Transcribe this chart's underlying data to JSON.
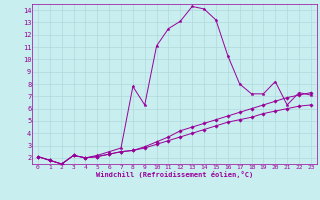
{
  "xlabel": "Windchill (Refroidissement éolien,°C)",
  "xlim": [
    -0.5,
    23.5
  ],
  "ylim": [
    1.5,
    14.5
  ],
  "xticks": [
    0,
    1,
    2,
    3,
    4,
    5,
    6,
    7,
    8,
    9,
    10,
    11,
    12,
    13,
    14,
    15,
    16,
    17,
    18,
    19,
    20,
    21,
    22,
    23
  ],
  "yticks": [
    2,
    3,
    4,
    5,
    6,
    7,
    8,
    9,
    10,
    11,
    12,
    13,
    14
  ],
  "bg_color": "#c8eef0",
  "line_color": "#990099",
  "grid_color": "#b0d8da",
  "line1_x": [
    0,
    1,
    2,
    3,
    4,
    5,
    6,
    7,
    8,
    9,
    10,
    11,
    12,
    13,
    14,
    15,
    16,
    17,
    18,
    19,
    20,
    21,
    22,
    23
  ],
  "line1_y": [
    2.1,
    1.8,
    1.5,
    2.2,
    2.0,
    2.1,
    2.3,
    2.5,
    2.6,
    2.8,
    3.1,
    3.4,
    3.7,
    4.0,
    4.3,
    4.6,
    4.9,
    5.1,
    5.3,
    5.6,
    5.8,
    6.0,
    6.2,
    6.3
  ],
  "line2_x": [
    0,
    1,
    2,
    3,
    4,
    5,
    6,
    7,
    8,
    9,
    10,
    11,
    12,
    13,
    14,
    15,
    16,
    17,
    18,
    19,
    20,
    21,
    22,
    23
  ],
  "line2_y": [
    2.1,
    1.8,
    1.5,
    2.2,
    2.0,
    2.2,
    2.5,
    2.8,
    7.8,
    6.3,
    11.1,
    12.5,
    13.1,
    14.3,
    14.1,
    13.2,
    10.3,
    8.0,
    7.2,
    7.2,
    8.2,
    6.3,
    7.3,
    7.1
  ],
  "line3_x": [
    0,
    1,
    2,
    3,
    4,
    5,
    6,
    7,
    8,
    9,
    10,
    11,
    12,
    13,
    14,
    15,
    16,
    17,
    18,
    19,
    20,
    21,
    22,
    23
  ],
  "line3_y": [
    2.1,
    1.8,
    1.5,
    2.2,
    2.0,
    2.1,
    2.3,
    2.5,
    2.6,
    2.9,
    3.3,
    3.7,
    4.2,
    4.5,
    4.8,
    5.1,
    5.4,
    5.7,
    6.0,
    6.3,
    6.6,
    6.9,
    7.1,
    7.3
  ]
}
